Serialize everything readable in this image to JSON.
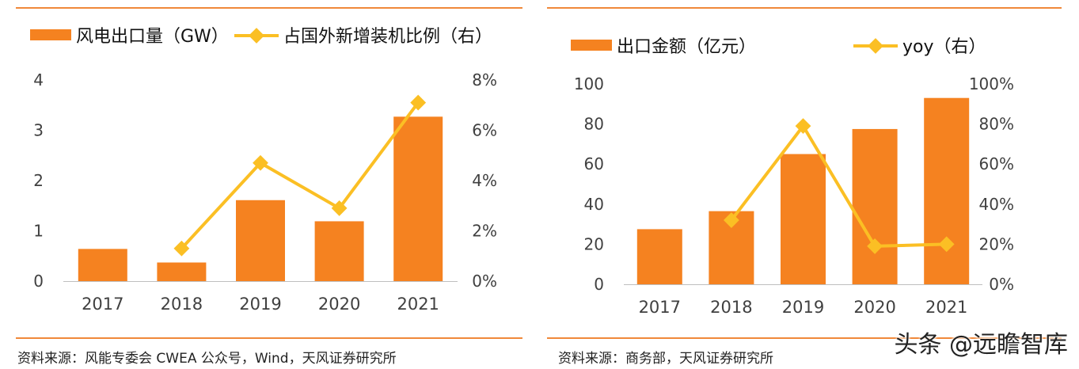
{
  "chart_data": [
    {
      "type": "bar+line",
      "categories": [
        "2017",
        "2018",
        "2019",
        "2020",
        "2021"
      ],
      "series": [
        {
          "name": "风电出口量（GW）",
          "kind": "bar",
          "axis": "left",
          "values": [
            0.64,
            0.37,
            1.61,
            1.19,
            3.27
          ]
        },
        {
          "name": "占国外新增装机比例（右）",
          "kind": "line",
          "axis": "right",
          "values": [
            null,
            1.3,
            4.7,
            2.9,
            7.1
          ]
        }
      ],
      "y_left": {
        "lim": [
          0,
          4
        ],
        "ticks": [
          "0",
          "1",
          "2",
          "3",
          "4"
        ]
      },
      "y_right": {
        "lim": [
          0,
          8
        ],
        "ticks": [
          "0%",
          "2%",
          "4%",
          "6%",
          "8%"
        ]
      },
      "legend": "top",
      "grid": false,
      "source": "资料来源：风能专委会 CWEA 公众号，Wind，天风证券研究所"
    },
    {
      "type": "bar+line",
      "categories": [
        "2017",
        "2018",
        "2019",
        "2020",
        "2021"
      ],
      "series": [
        {
          "name": "出口金额（亿元）",
          "kind": "bar",
          "axis": "left",
          "values": [
            27.5,
            36.5,
            65,
            77.5,
            93
          ]
        },
        {
          "name": "yoy（右）",
          "kind": "line",
          "axis": "right",
          "values": [
            null,
            32,
            79,
            19,
            20
          ]
        }
      ],
      "y_left": {
        "lim": [
          0,
          100
        ],
        "ticks": [
          "0",
          "20",
          "40",
          "60",
          "80",
          "100"
        ]
      },
      "y_right": {
        "lim": [
          0,
          100
        ],
        "ticks": [
          "0%",
          "20%",
          "40%",
          "60%",
          "80%",
          "100%"
        ]
      },
      "legend": "top",
      "grid": false,
      "source": "资料来源：商务部，天风证券研究所"
    }
  ],
  "colors": {
    "bar": "#f58220",
    "line": "#fbbf24",
    "rule": "#f0883a",
    "text": "#404040"
  },
  "watermark": "头条 @远瞻智库"
}
